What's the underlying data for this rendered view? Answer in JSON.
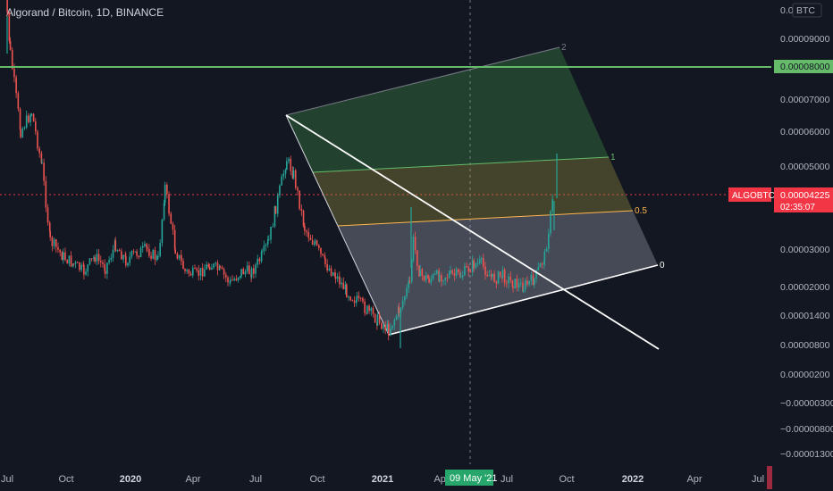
{
  "header": {
    "title": "Algorand / Bitcoin, 1D, BINANCE"
  },
  "price_axis": {
    "currency": "BTC",
    "ticks": [
      "0.00009000",
      "0.00008000",
      "0.00007000",
      "0.00006000",
      "0.00005000",
      "0.00003000",
      "0.00002000",
      "0.00001400",
      "0.00000800",
      "0.00000200",
      "−0.00000300",
      "−0.00000800",
      "−0.00001300"
    ],
    "top_partial": "0.0"
  },
  "time_axis": {
    "ticks": [
      "Jul",
      "Oct",
      "2020",
      "Apr",
      "Jul",
      "Oct",
      "2021",
      "Apr",
      "Jul",
      "Oct",
      "2022",
      "Apr",
      "Jul"
    ],
    "crosshair_label": "09 May '21"
  },
  "badges": {
    "hline_value": "0.00008000",
    "symbol": "ALGOBTC",
    "last_price": "0.00004225",
    "countdown": "02:35:07"
  },
  "pitchfan_levels": [
    "2",
    "1",
    "0.5",
    "0"
  ],
  "colors": {
    "background": "#131722",
    "candle_up": "#26a69a",
    "candle_down": "#ef5350",
    "hline": "#66bb6a",
    "price_badge": "#f23645",
    "level_2": "#787b86",
    "level_1": "#66bb6a",
    "level_05": "#ffb74d",
    "level_0": "#ffffff"
  },
  "chart_data": {
    "type": "candlestick",
    "title": "Algorand / Bitcoin, 1D, BINANCE",
    "series": [
      {
        "name": "ALGOBTC",
        "points": [
          [
            "2019-06-22",
            0.000125
          ],
          [
            "2019-07-05",
            8.5e-05
          ],
          [
            "2019-07-20",
            6e-05
          ],
          [
            "2019-08-05",
            6.6e-05
          ],
          [
            "2019-08-20",
            5e-05
          ],
          [
            "2019-09-01",
            3.2e-05
          ],
          [
            "2019-09-20",
            2.8e-05
          ],
          [
            "2019-10-05",
            2.6e-05
          ],
          [
            "2019-10-20",
            2.4e-05
          ],
          [
            "2019-11-05",
            2.8e-05
          ],
          [
            "2019-11-20",
            2.5e-05
          ],
          [
            "2019-12-05",
            3.1e-05
          ],
          [
            "2019-12-20",
            2.7e-05
          ],
          [
            "2020-01-05",
            2.9e-05
          ],
          [
            "2020-01-20",
            3e-05
          ],
          [
            "2020-02-05",
            2.7e-05
          ],
          [
            "2020-02-15",
            4.5e-05
          ],
          [
            "2020-03-01",
            3e-05
          ],
          [
            "2020-03-15",
            2.4e-05
          ],
          [
            "2020-04-01",
            2.3e-05
          ],
          [
            "2020-04-20",
            2.6e-05
          ],
          [
            "2020-05-05",
            2.4e-05
          ],
          [
            "2020-05-20",
            2.1e-05
          ],
          [
            "2020-06-05",
            2.4e-05
          ],
          [
            "2020-06-20",
            2.4e-05
          ],
          [
            "2020-07-05",
            2.8e-05
          ],
          [
            "2020-07-15",
            3.2e-05
          ],
          [
            "2020-07-25",
            4e-05
          ],
          [
            "2020-08-10",
            5.2e-05
          ],
          [
            "2020-08-20",
            4.8e-05
          ],
          [
            "2020-09-05",
            3.5e-05
          ],
          [
            "2020-09-20",
            3.1e-05
          ],
          [
            "2020-10-05",
            2.6e-05
          ],
          [
            "2020-10-20",
            2.3e-05
          ],
          [
            "2020-11-05",
            1.9e-05
          ],
          [
            "2020-11-20",
            1.7e-05
          ],
          [
            "2020-12-05",
            1.5e-05
          ],
          [
            "2020-12-20",
            1.3e-05
          ],
          [
            "2021-01-05",
            1.1e-05
          ],
          [
            "2021-01-20",
            1.5e-05
          ],
          [
            "2021-02-05",
            2.1e-05
          ],
          [
            "2021-02-10",
            3.2e-05
          ],
          [
            "2021-02-20",
            2.3e-05
          ],
          [
            "2021-03-05",
            2.2e-05
          ],
          [
            "2021-03-20",
            2.3e-05
          ],
          [
            "2021-04-05",
            2.3e-05
          ],
          [
            "2021-04-20",
            2.3e-05
          ],
          [
            "2021-05-09",
            2.6e-05
          ],
          [
            "2021-05-20",
            2.6e-05
          ],
          [
            "2021-06-05",
            2.2e-05
          ],
          [
            "2021-06-20",
            2.3e-05
          ],
          [
            "2021-07-05",
            2.1e-05
          ],
          [
            "2021-07-20",
            2e-05
          ],
          [
            "2021-08-05",
            2.2e-05
          ],
          [
            "2021-08-20",
            2.8e-05
          ],
          [
            "2021-09-01",
            4.2e-05
          ]
        ]
      }
    ],
    "horizontal_line": 8e-05,
    "last_price": 4.225e-05,
    "pitchfan": {
      "anchor": [
        "2020-08-20",
        6.6e-05
      ],
      "pivot_low": [
        "2021-01-05",
        8.5e-06
      ],
      "levels": [
        2,
        1,
        0.5,
        0
      ]
    }
  }
}
